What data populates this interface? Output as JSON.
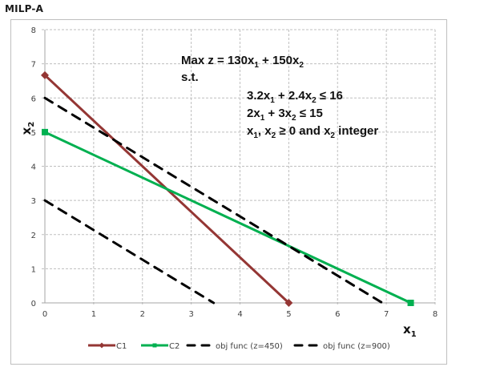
{
  "page": {
    "title": "MILP-A"
  },
  "colors": {
    "C1": "#943634",
    "C2": "#00b050",
    "obj": "#000000",
    "grid": "#bfbfbf",
    "axis": "#a6a6a6"
  },
  "model": {
    "objective": {
      "prefix": "Max z = 130x",
      "sub1": "1",
      "mid": " + 150x",
      "sub2": "2"
    },
    "st": "s.t.",
    "constraints": [
      {
        "a": "3.2x",
        "s1": "1",
        "b": " + 2.4x",
        "s2": "2",
        "c": " ≤ 16"
      },
      {
        "a": "2x",
        "s1": "1",
        "b": " + 3x",
        "s2": "2",
        "c": " ≤ 15"
      },
      {
        "a": "x",
        "s1": "1",
        "b": ", x",
        "s2": "2",
        "c": " ≥ 0 and x",
        "s3": "2",
        "d": " integer"
      }
    ]
  },
  "chart_data": {
    "type": "line",
    "title": "MILP-A",
    "xlabel": "x1",
    "ylabel": "x2",
    "xlim": [
      0,
      8
    ],
    "ylim": [
      0,
      8
    ],
    "xticks": [
      0,
      1,
      2,
      3,
      4,
      5,
      6,
      7,
      8
    ],
    "yticks": [
      0,
      1,
      2,
      3,
      4,
      5,
      6,
      7,
      8
    ],
    "grid": true,
    "legend_position": "bottom",
    "series": [
      {
        "name": "C1",
        "x": [
          0,
          5
        ],
        "y": [
          6.667,
          0
        ],
        "style": "solid",
        "marker": "diamond",
        "color": "#943634"
      },
      {
        "name": "C2",
        "x": [
          0,
          7.5
        ],
        "y": [
          5,
          0
        ],
        "style": "solid",
        "marker": "square",
        "color": "#00b050"
      },
      {
        "name": "obj func (z=450)",
        "x": [
          0,
          3.46
        ],
        "y": [
          3,
          0
        ],
        "style": "dashed",
        "marker": "none",
        "color": "#000000"
      },
      {
        "name": "obj func (z=900)",
        "x": [
          0,
          6.92
        ],
        "y": [
          6,
          0
        ],
        "style": "dashed",
        "marker": "none",
        "color": "#000000"
      }
    ],
    "annotations": [
      "Max z = 130x1 + 150x2",
      "s.t.",
      "3.2x1 + 2.4x2 ≤ 16",
      "2x1 + 3x2 ≤ 15",
      "x1, x2 ≥ 0 and x2 integer"
    ]
  }
}
